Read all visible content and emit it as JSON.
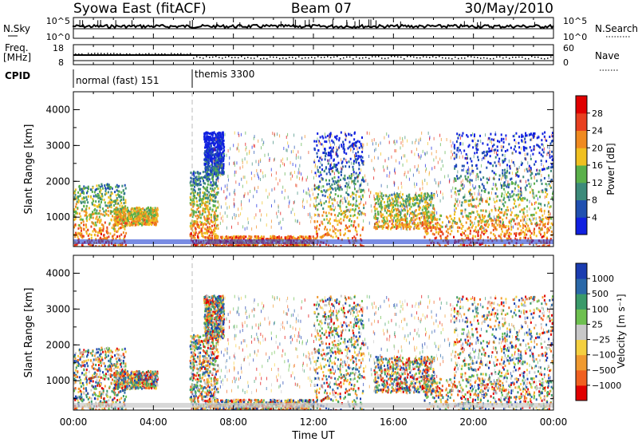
{
  "header": {
    "station": "Syowa East (fitACF)",
    "beam": "Beam 07",
    "date": "30/May/2010"
  },
  "sky_panel": {
    "left_label": "N.Sky",
    "right_label": "N.Search",
    "left_ticks": [
      "10^5",
      "10^0"
    ],
    "right_ticks": [
      "10^5",
      "10^0"
    ]
  },
  "freq_panel": {
    "left_label_1": "Freq.",
    "left_label_2": "[MHz]",
    "right_label": "Nave",
    "left_ticks": [
      "18",
      "8"
    ],
    "right_ticks": [
      "60",
      "0"
    ]
  },
  "cpid": {
    "label": "CPID",
    "segments": [
      {
        "start": 0,
        "end": 6,
        "text": "normal (fast) 151"
      },
      {
        "start": 6,
        "end": 24,
        "text": "themis 3300"
      }
    ]
  },
  "x_axis": {
    "title": "Time UT",
    "ticks": [
      "00:00",
      "04:00",
      "08:00",
      "12:00",
      "16:00",
      "20:00",
      "00:00"
    ]
  },
  "y_axis": {
    "title": "Slant Range [km]",
    "ticks": [
      "1000",
      "2000",
      "3000",
      "4000"
    ]
  },
  "power_colorbar": {
    "title": "Power [dB]",
    "labels": [
      "4",
      "8",
      "12",
      "16",
      "20",
      "24",
      "28"
    ],
    "colors": [
      "#1020e0",
      "#2050b0",
      "#3c8a7a",
      "#5ab04a",
      "#f0c020",
      "#f08a20",
      "#e84020",
      "#e00000"
    ]
  },
  "velocity_colorbar": {
    "title": "Velocity [m s⁻¹]",
    "labels": [
      "1000",
      "500",
      "100",
      "25",
      "−25",
      "−100",
      "−500",
      "−1000"
    ],
    "colors": [
      "#1a3cb0",
      "#2a68a8",
      "#3a9a6a",
      "#6ec050",
      "#c8c8c8",
      "#f5d040",
      "#f09a30",
      "#f06020",
      "#e00000"
    ]
  },
  "chart_data": {
    "type": "heatmap",
    "x_range_hours": [
      0,
      24
    ],
    "y_range_km": [
      180,
      4500
    ],
    "panels": [
      "power",
      "velocity"
    ],
    "scatter_regions": [
      {
        "t": [
          0.0,
          2.6
        ],
        "r": [
          200,
          1950
        ]
      },
      {
        "t": [
          2.0,
          4.2
        ],
        "r": [
          800,
          1300
        ]
      },
      {
        "t": [
          5.8,
          7.2
        ],
        "r": [
          200,
          2300
        ]
      },
      {
        "t": [
          6.5,
          7.5
        ],
        "r": [
          2200,
          3400
        ]
      },
      {
        "t": [
          7.0,
          12.0
        ],
        "r": [
          200,
          500
        ]
      },
      {
        "t": [
          12.0,
          14.5
        ],
        "r": [
          200,
          3400
        ]
      },
      {
        "t": [
          15.0,
          18.0
        ],
        "r": [
          700,
          1700
        ]
      },
      {
        "t": [
          17.5,
          24.0
        ],
        "r": [
          200,
          1100
        ]
      },
      {
        "t": [
          19.0,
          24.0
        ],
        "r": [
          1100,
          3400
        ]
      }
    ]
  }
}
